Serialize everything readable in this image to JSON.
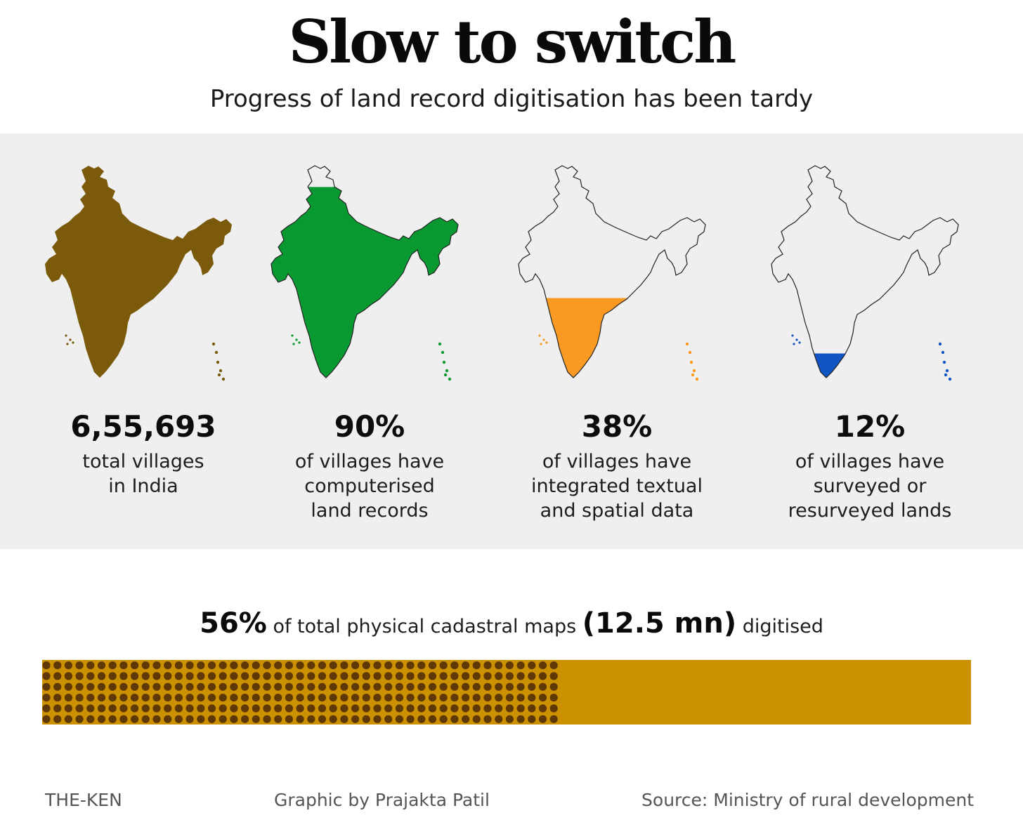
{
  "title": "Slow to switch",
  "subtitle": "Progress of land record digitisation has been tardy",
  "chart_data": [
    {
      "type": "map-fill",
      "series": [
        {
          "value_label": "6,55,693",
          "lines": [
            "total villages",
            "in India"
          ],
          "fill_fraction": 1.0,
          "color": "#7b5a0b",
          "outline": false
        },
        {
          "value_label": "90%",
          "lines": [
            "of villages have",
            "computerised",
            "land records"
          ],
          "fill_fraction": 0.9,
          "color": "#089a31",
          "outline": true
        },
        {
          "value_label": "38%",
          "lines": [
            "of villages have",
            "integrated textual",
            "and spatial data"
          ],
          "fill_fraction": 0.38,
          "color": "#fb9a22",
          "outline": true
        },
        {
          "value_label": "12%",
          "lines": [
            "of villages have",
            "surveyed or",
            "resurveyed lands"
          ],
          "fill_fraction": 0.12,
          "color": "#1155c4",
          "outline": true
        }
      ]
    },
    {
      "type": "bar",
      "value": 56,
      "max": 100,
      "value_label": "56%",
      "text_before": "of total physical cadastral maps",
      "total_label": "(12.5 mn)",
      "text_after": "digitised",
      "colors": {
        "bar": "#cc9100",
        "dots": "#5e3806"
      }
    }
  ],
  "footer": {
    "brand": "THE-KEN",
    "credit": "Graphic by Prajakta Patil",
    "source": "Source: Ministry of rural development"
  }
}
